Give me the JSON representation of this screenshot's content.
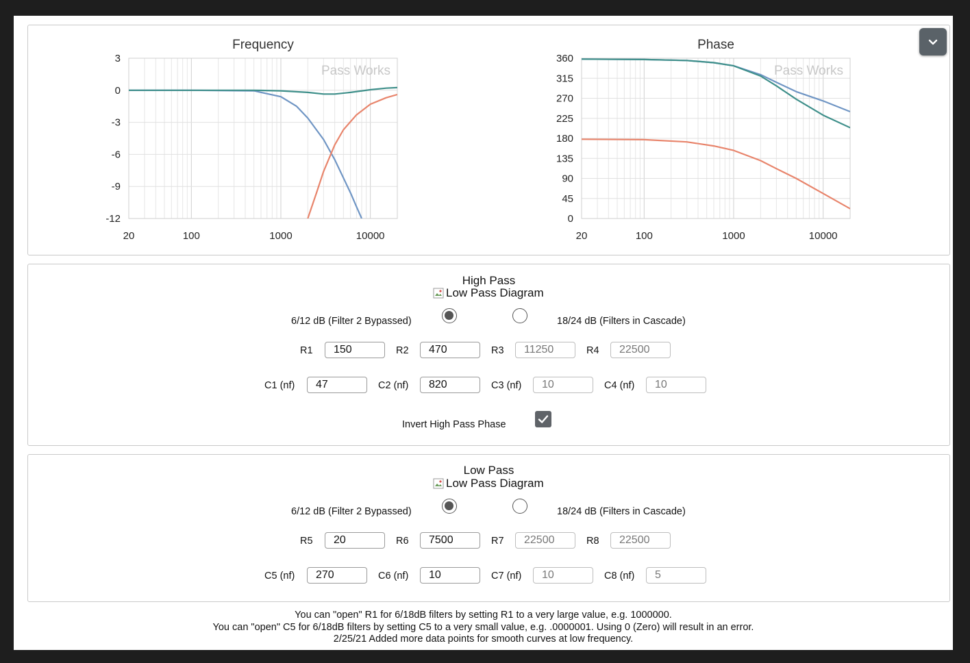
{
  "freq_chart": {
    "title": "Frequency",
    "watermark": "Pass Works",
    "x_ticks": [
      "20",
      "100",
      "1000",
      "10000"
    ],
    "y_ticks": [
      "3",
      "0",
      "-3",
      "-6",
      "-9",
      "-12"
    ]
  },
  "phase_chart": {
    "title": "Phase",
    "watermark": "Pass Works",
    "x_ticks": [
      "20",
      "100",
      "1000",
      "10000"
    ],
    "y_ticks": [
      "360",
      "315",
      "270",
      "225",
      "180",
      "135",
      "90",
      "45",
      "0"
    ]
  },
  "chart_data": [
    {
      "type": "line",
      "title": "Frequency",
      "x_scale": "log",
      "xlim": [
        20,
        20000
      ],
      "ylim": [
        -12,
        3
      ],
      "x_ticks": [
        20,
        100,
        1000,
        10000
      ],
      "y_ticks": [
        3,
        0,
        -3,
        -6,
        -9,
        -12
      ],
      "grid": true,
      "series": [
        {
          "color": "#6f95c4",
          "x": [
            20,
            100,
            500,
            1000,
            1500,
            2000,
            3000,
            4000,
            5000,
            6000,
            7000,
            8000
          ],
          "y": [
            0,
            0,
            -0.05,
            -0.6,
            -1.5,
            -2.6,
            -4.6,
            -6.5,
            -8.2,
            -9.6,
            -10.9,
            -12
          ]
        },
        {
          "color": "#e8846b",
          "x": [
            2000,
            2500,
            3000,
            4000,
            5000,
            7000,
            10000,
            15000,
            20000
          ],
          "y": [
            -12,
            -9.6,
            -7.6,
            -5.1,
            -3.7,
            -2.3,
            -1.3,
            -0.7,
            -0.4
          ]
        },
        {
          "color": "#3e8f8a",
          "x": [
            20,
            500,
            1000,
            2000,
            3000,
            4000,
            6000,
            10000,
            15000,
            20000
          ],
          "y": [
            0,
            0,
            -0.05,
            -0.2,
            -0.35,
            -0.35,
            -0.2,
            0.05,
            0.2,
            0.25
          ]
        }
      ]
    },
    {
      "type": "line",
      "title": "Phase",
      "x_scale": "log",
      "xlim": [
        20,
        20000
      ],
      "ylim": [
        0,
        360
      ],
      "x_ticks": [
        20,
        100,
        1000,
        10000
      ],
      "y_ticks": [
        360,
        315,
        270,
        225,
        180,
        135,
        90,
        45,
        0
      ],
      "grid": true,
      "series": [
        {
          "color": "#6f95c4",
          "x": [
            20,
            100,
            300,
            600,
            1000,
            2000,
            3000,
            5000,
            10000,
            20000
          ],
          "y": [
            358,
            357,
            355,
            350,
            343,
            323,
            306,
            285,
            264,
            240
          ]
        },
        {
          "color": "#3e8f8a",
          "x": [
            20,
            100,
            300,
            600,
            1000,
            2000,
            3000,
            5000,
            10000,
            20000
          ],
          "y": [
            358,
            357,
            355,
            350,
            343,
            320,
            298,
            268,
            232,
            204
          ]
        },
        {
          "color": "#e8846b",
          "x": [
            20,
            100,
            300,
            600,
            1000,
            2000,
            3000,
            5000,
            10000,
            20000
          ],
          "y": [
            178,
            177,
            172,
            163,
            153,
            130,
            112,
            90,
            56,
            22
          ]
        }
      ]
    }
  ],
  "high_pass": {
    "title": "High Pass",
    "diagram_alt": "Low Pass Diagram",
    "option_a": "6/12 dB (Filter 2 Bypassed)",
    "option_b": "18/24 dB (Filters in Cascade)",
    "selected": "option_a",
    "r1_label": "R1",
    "r1": "150",
    "r2_label": "R2",
    "r2": "470",
    "r3_label": "R3",
    "r3": "11250",
    "r4_label": "R4",
    "r4": "22500",
    "c1_label": "C1 (nf)",
    "c1": "47",
    "c2_label": "C2 (nf)",
    "c2": "820",
    "c3_label": "C3 (nf)",
    "c3": "10",
    "c4_label": "C4 (nf)",
    "c4": "10",
    "invert_label": "Invert High Pass Phase",
    "invert_checked": true
  },
  "low_pass": {
    "title": "Low Pass",
    "diagram_alt": "Low Pass Diagram",
    "option_a": "6/12 dB (Filter 2 Bypassed)",
    "option_b": "18/24 dB (Filters in Cascade)",
    "selected": "option_a",
    "r5_label": "R5",
    "r5": "20",
    "r6_label": "R6",
    "r6": "7500",
    "r7_label": "R7",
    "r7": "22500",
    "r8_label": "R8",
    "r8": "22500",
    "c5_label": "C5 (nf)",
    "c5": "270",
    "c6_label": "C6 (nf)",
    "c6": "10",
    "c7_label": "C7 (nf)",
    "c7": "10",
    "c8_label": "C8 (nf)",
    "c8": "5"
  },
  "notes": [
    "You can \"open\" R1 for 6/18dB filters by setting R1 to a very large value, e.g. 1000000.",
    "You can \"open\" C5 for 6/18dB filters by setting C5 to a very small value, e.g. .0000001. Using 0 (Zero) will result in an error.",
    "2/25/21 Added more data points for smooth curves at low frequency."
  ],
  "icons": {
    "collapse": "chevron-down-icon",
    "broken_image": "broken-image-icon",
    "check": "checkmark-icon"
  }
}
